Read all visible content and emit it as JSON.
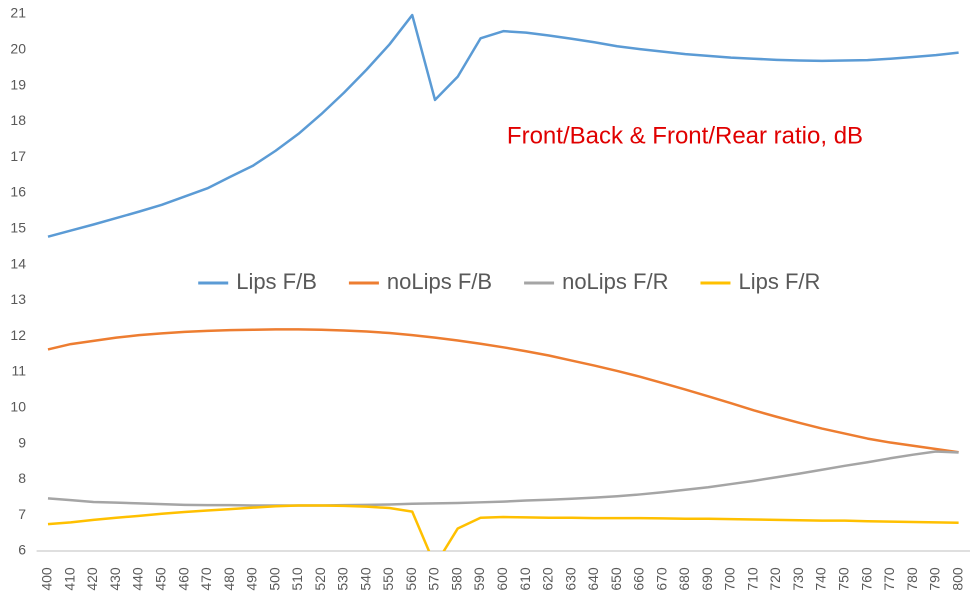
{
  "chart_data": {
    "type": "line",
    "annotation": "Front/Back & Front/Rear ratio, dB",
    "categories": [
      400,
      410,
      420,
      430,
      440,
      450,
      460,
      470,
      480,
      490,
      500,
      510,
      520,
      530,
      540,
      550,
      560,
      570,
      580,
      590,
      600,
      610,
      620,
      630,
      640,
      650,
      660,
      670,
      680,
      690,
      700,
      710,
      720,
      730,
      740,
      750,
      760,
      770,
      780,
      790,
      800
    ],
    "ylim": [
      6,
      21
    ],
    "yticks": [
      6,
      7,
      8,
      9,
      10,
      11,
      12,
      13,
      14,
      15,
      16,
      17,
      18,
      19,
      20,
      21
    ],
    "grid": false,
    "legend": "center",
    "series": [
      {
        "name": "Lips F/B",
        "color": "#5b9bd5",
        "values": [
          14.78,
          14.95,
          15.12,
          15.3,
          15.48,
          15.67,
          15.9,
          16.13,
          16.45,
          16.76,
          17.18,
          17.65,
          18.2,
          18.8,
          19.45,
          20.15,
          20.97,
          18.6,
          19.25,
          20.32,
          20.52,
          20.48,
          20.4,
          20.31,
          20.21,
          20.1,
          20.02,
          19.95,
          19.88,
          19.83,
          19.78,
          19.75,
          19.72,
          19.7,
          19.69,
          19.7,
          19.71,
          19.75,
          19.8,
          19.85,
          19.92
        ]
      },
      {
        "name": "noLips F/B",
        "color": "#ed7d31",
        "values": [
          11.63,
          11.78,
          11.87,
          11.96,
          12.03,
          12.08,
          12.12,
          12.15,
          12.17,
          12.18,
          12.19,
          12.19,
          12.18,
          12.16,
          12.13,
          12.09,
          12.03,
          11.96,
          11.88,
          11.79,
          11.69,
          11.58,
          11.46,
          11.32,
          11.18,
          11.03,
          10.87,
          10.69,
          10.51,
          10.32,
          10.13,
          9.93,
          9.75,
          9.58,
          9.42,
          9.28,
          9.14,
          9.03,
          8.94,
          8.85,
          8.76
        ]
      },
      {
        "name": "noLips F/R",
        "color": "#a5a5a5",
        "values": [
          7.47,
          7.42,
          7.37,
          7.35,
          7.33,
          7.31,
          7.29,
          7.28,
          7.28,
          7.27,
          7.27,
          7.27,
          7.27,
          7.28,
          7.29,
          7.3,
          7.32,
          7.33,
          7.34,
          7.36,
          7.38,
          7.41,
          7.43,
          7.46,
          7.49,
          7.53,
          7.58,
          7.64,
          7.71,
          7.78,
          7.87,
          7.96,
          8.06,
          8.16,
          8.27,
          8.38,
          8.48,
          8.59,
          8.69,
          8.78,
          8.75
        ]
      },
      {
        "name": "Lips F/R",
        "color": "#ffc000",
        "values": [
          6.75,
          6.8,
          6.87,
          6.93,
          6.98,
          7.04,
          7.09,
          7.13,
          7.17,
          7.21,
          7.25,
          7.27,
          7.27,
          7.26,
          7.24,
          7.2,
          7.1,
          5.6,
          6.63,
          6.93,
          6.95,
          6.94,
          6.93,
          6.93,
          6.92,
          6.92,
          6.92,
          6.91,
          6.9,
          6.9,
          6.89,
          6.88,
          6.87,
          6.86,
          6.85,
          6.85,
          6.83,
          6.82,
          6.81,
          6.8,
          6.79
        ]
      }
    ]
  }
}
